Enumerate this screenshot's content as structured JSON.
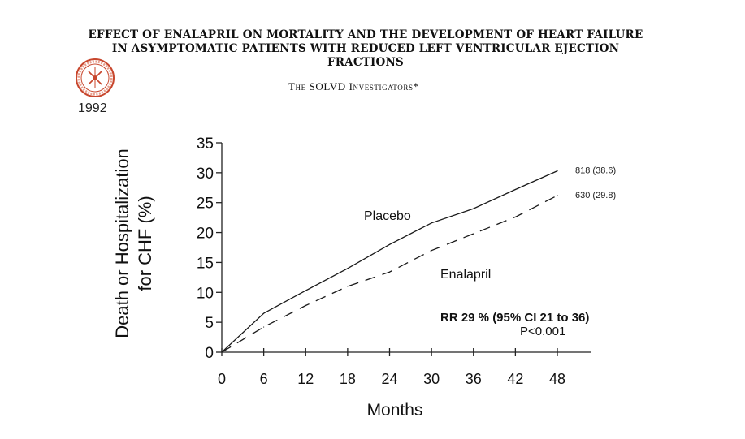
{
  "paper": {
    "title_lines": [
      "EFFECT OF ENALAPRIL ON MORTALITY AND THE DEVELOPMENT OF HEART FAILURE",
      "IN ASYMPTOMATIC PATIENTS WITH REDUCED LEFT VENTRICULAR EJECTION",
      "FRACTIONS"
    ],
    "authors": "The SOLVD Investigators*",
    "year": "1992",
    "seal_icon": "journal-seal-icon"
  },
  "chart_data": {
    "type": "line",
    "title": "",
    "xlabel": "Months",
    "ylabel_lines": [
      "Death or Hospitalization",
      "for CHF (%)"
    ],
    "x": [
      0,
      6,
      12,
      18,
      24,
      30,
      36,
      42,
      48
    ],
    "x_ticks": [
      "0",
      "6",
      "12",
      "18",
      "24",
      "30",
      "36",
      "42",
      "48"
    ],
    "y_ticks": [
      "0",
      "5",
      "10",
      "15",
      "20",
      "25",
      "30",
      "35"
    ],
    "xlim": [
      0,
      52
    ],
    "ylim": [
      0,
      35
    ],
    "grid": false,
    "series": [
      {
        "name": "Placebo",
        "style": "solid",
        "x": [
          0,
          6,
          12,
          18,
          24,
          30,
          36,
          42,
          48
        ],
        "values": [
          0,
          6.5,
          10.3,
          14.0,
          18.0,
          21.6,
          24.0,
          27.2,
          30.3
        ],
        "end_label": "818 (38.6)"
      },
      {
        "name": "Enalapril",
        "style": "dashed",
        "x": [
          0,
          6,
          12,
          18,
          24,
          30,
          36,
          42,
          48
        ],
        "values": [
          0,
          4.2,
          7.8,
          11.0,
          13.4,
          17.0,
          19.8,
          22.6,
          26.2
        ],
        "end_label": "630 (29.8)"
      }
    ],
    "annotations": {
      "rr": "RR 29 % (95% CI 21 to 36)",
      "p": "P<0.001"
    }
  }
}
